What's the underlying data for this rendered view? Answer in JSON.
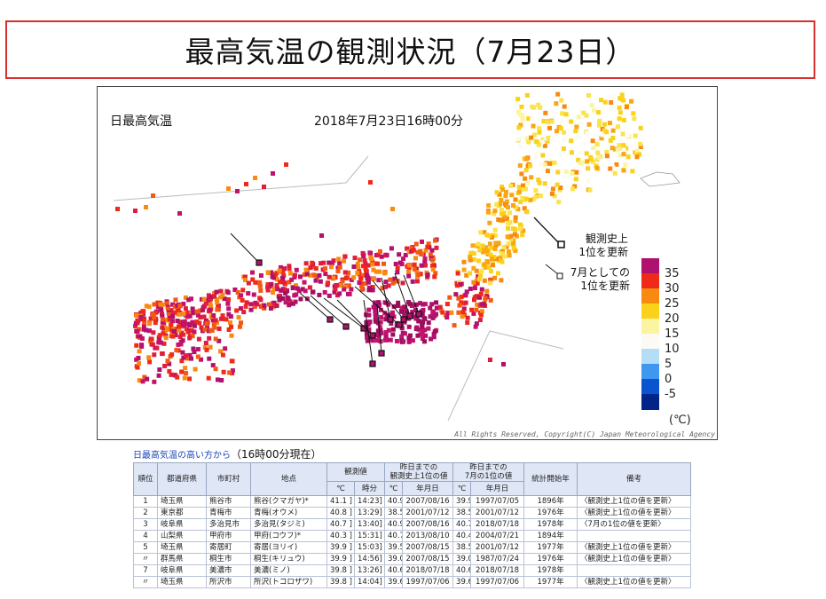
{
  "page": {
    "title": "最高気温の観測状況（7月23日）"
  },
  "map": {
    "label": "日最高気温",
    "datetime": "2018年7月23日16時00分",
    "annotation_record_alltime": "観測史上\n1位を更新",
    "annotation_record_july": "7月としての\n1位を更新",
    "unit": "(℃)",
    "copyright": "All Rights Reserved, Copyright(C) Japan Meteorological Agency",
    "legend": [
      {
        "label": "35",
        "color": "#b0106e"
      },
      {
        "label": "30",
        "color": "#f02a18"
      },
      {
        "label": "25",
        "color": "#f88a10"
      },
      {
        "label": "20",
        "color": "#fad21a"
      },
      {
        "label": "15",
        "color": "#fbf5a2"
      },
      {
        "label": "10",
        "color": "#fbfbf3"
      },
      {
        "label": "5",
        "color": "#b5ddf7"
      },
      {
        "label": "0",
        "color": "#3e98f0"
      },
      {
        "label": "-5",
        "color": "#0a54d2"
      },
      {
        "label": "",
        "color": "#022388"
      }
    ]
  },
  "table": {
    "caption_link": "日最高気温の高い方から",
    "caption_time": "（16時00分現在）",
    "headers": {
      "rank": "順位",
      "pref": "都道府県",
      "city": "市町村",
      "station": "地点",
      "observed": "観測値",
      "obs_c": "℃",
      "obs_time": "時分",
      "prev_record": "昨日までの\n観測史上1位の値",
      "prev_c": "℃",
      "prev_date": "年月日",
      "july_record": "昨日までの\n7月の1位の値",
      "july_c": "℃",
      "july_date": "年月日",
      "start_year": "統計開始年",
      "remarks": "備考"
    },
    "rows": [
      [
        "1",
        "埼玉県",
        "熊谷市",
        "熊谷(クマガヤ)*",
        "41.1 ]",
        "14:23]",
        "40.9",
        "2007/08/16",
        "39.9",
        "1997/07/05",
        "1896年",
        "〈観測史上1位の値を更新〉"
      ],
      [
        "2",
        "東京都",
        "青梅市",
        "青梅(オウメ)",
        "40.8 ]",
        "13:29]",
        "38.5",
        "2001/07/12",
        "38.5",
        "2001/07/12",
        "1976年",
        "〈観測史上1位の値を更新〉"
      ],
      [
        "3",
        "岐阜県",
        "多治見市",
        "多治見(タジミ)",
        "40.7 ]",
        "13:40]",
        "40.9",
        "2007/08/16",
        "40.7",
        "2018/07/18",
        "1978年",
        "〈7月の1位の値を更新〉"
      ],
      [
        "4",
        "山梨県",
        "甲府市",
        "甲府(コウフ)*",
        "40.3 ]",
        "15:31]",
        "40.7",
        "2013/08/10",
        "40.4",
        "2004/07/21",
        "1894年",
        ""
      ],
      [
        "5",
        "埼玉県",
        "寄居町",
        "寄居(ヨリイ)",
        "39.9 ]",
        "15:03]",
        "39.5",
        "2007/08/15",
        "38.5",
        "2001/07/12",
        "1977年",
        "〈観測史上1位の値を更新〉"
      ],
      [
        "〃",
        "群馬県",
        "桐生市",
        "桐生(キリュウ)",
        "39.9 ]",
        "14:56]",
        "39.0",
        "2007/08/15",
        "39.0",
        "1987/07/24",
        "1976年",
        "〈観測史上1位の値を更新〉"
      ],
      [
        "7",
        "岐阜県",
        "美濃市",
        "美濃(ミノ)",
        "39.8 ]",
        "13:26]",
        "40.6",
        "2018/07/18",
        "40.6",
        "2018/07/18",
        "1978年",
        ""
      ],
      [
        "〃",
        "埼玉県",
        "所沢市",
        "所沢(トコロザワ)",
        "39.8 ]",
        "14:04]",
        "39.6",
        "1997/07/06",
        "39.6",
        "1997/07/06",
        "1977年",
        "〈観測史上1位の値を更新〉"
      ]
    ]
  }
}
